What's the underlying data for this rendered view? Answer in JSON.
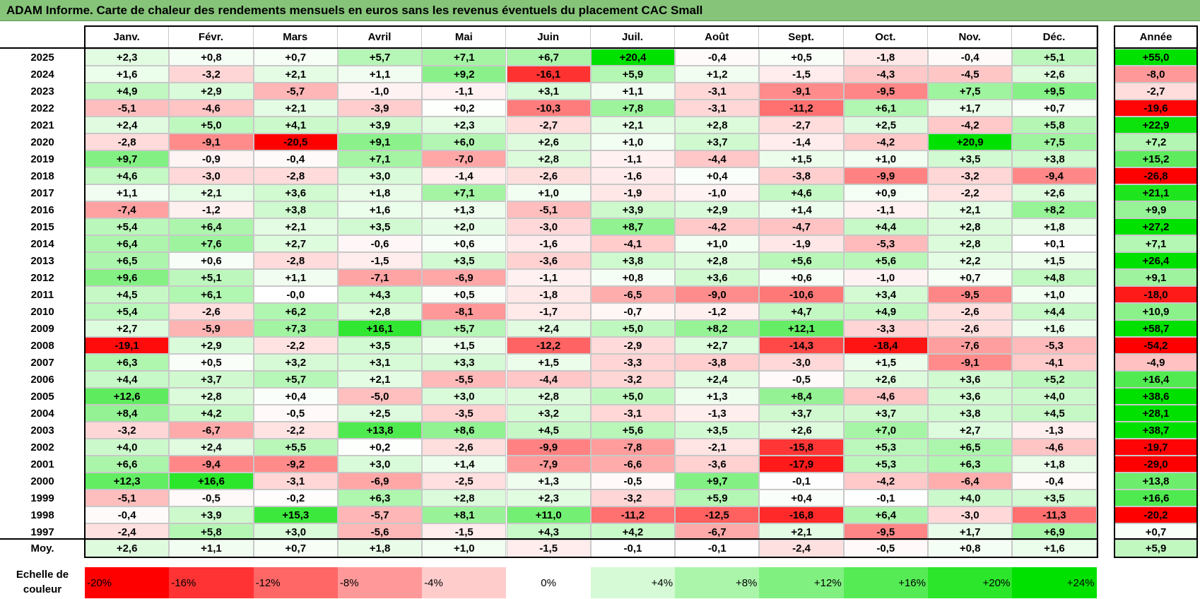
{
  "title": "ADAM Informe. Carte de chaleur des rendements mensuels en euros sans les revenus éventuels du placement CAC Small",
  "chart_data": {
    "type": "heatmap",
    "title": "ADAM Informe. Carte de chaleur des rendements mensuels en euros sans les revenus éventuels du placement CAC Small",
    "months": [
      "Janv.",
      "Févr.",
      "Mars",
      "Avril",
      "Mai",
      "Juin",
      "Juil.",
      "Août",
      "Sept.",
      "Oct.",
      "Nov.",
      "Déc."
    ],
    "annual_header": "Année",
    "average_label": "Moy.",
    "rows": [
      {
        "year": "2025",
        "values": [
          "+2,3",
          "+0,8",
          "+0,7",
          "+5,7",
          "+7,1",
          "+6,7",
          "+20,4",
          "-0,4",
          "+0,5",
          "-1,8",
          "-0,4",
          "+5,1"
        ],
        "annual": "+55,0"
      },
      {
        "year": "2024",
        "values": [
          "+1,6",
          "-3,2",
          "+2,1",
          "+1,1",
          "+9,2",
          "-16,1",
          "+5,9",
          "+1,2",
          "-1,5",
          "-4,3",
          "-4,5",
          "+2,6"
        ],
        "annual": "-8,0"
      },
      {
        "year": "2023",
        "values": [
          "+4,9",
          "+2,9",
          "-5,7",
          "-1,0",
          "-1,1",
          "+3,1",
          "+1,1",
          "-3,1",
          "-9,1",
          "-9,5",
          "+7,5",
          "+9,5"
        ],
        "annual": "-2,7"
      },
      {
        "year": "2022",
        "values": [
          "-5,1",
          "-4,6",
          "+2,1",
          "-3,9",
          "+0,2",
          "-10,3",
          "+7,8",
          "-3,1",
          "-11,2",
          "+6,1",
          "+1,7",
          "+0,7"
        ],
        "annual": "-19,6"
      },
      {
        "year": "2021",
        "values": [
          "+2,4",
          "+5,0",
          "+4,1",
          "+3,9",
          "+2,3",
          "-2,7",
          "+2,1",
          "+2,8",
          "-2,7",
          "+2,5",
          "-4,2",
          "+5,8"
        ],
        "annual": "+22,9"
      },
      {
        "year": "2020",
        "values": [
          "-2,8",
          "-9,1",
          "-20,5",
          "+9,1",
          "+6,0",
          "+2,6",
          "+1,0",
          "+3,7",
          "-1,4",
          "-4,2",
          "+20,9",
          "+7,5"
        ],
        "annual": "+7,2"
      },
      {
        "year": "2019",
        "values": [
          "+9,7",
          "-0,9",
          "-0,4",
          "+7,1",
          "-7,0",
          "+2,8",
          "-1,1",
          "-4,4",
          "+1,5",
          "+1,0",
          "+3,5",
          "+3,8"
        ],
        "annual": "+15,2"
      },
      {
        "year": "2018",
        "values": [
          "+4,6",
          "-3,0",
          "-2,8",
          "+3,0",
          "-1,4",
          "-2,6",
          "-1,6",
          "+0,4",
          "-3,8",
          "-9,9",
          "-3,2",
          "-9,4"
        ],
        "annual": "-26,8"
      },
      {
        "year": "2017",
        "values": [
          "+1,1",
          "+2,1",
          "+3,6",
          "+1,8",
          "+7,1",
          "+1,0",
          "-1,9",
          "-1,0",
          "+4,6",
          "+0,9",
          "-2,2",
          "+2,6"
        ],
        "annual": "+21,1"
      },
      {
        "year": "2016",
        "values": [
          "-7,4",
          "-1,2",
          "+3,8",
          "+1,6",
          "+1,3",
          "-5,1",
          "+3,9",
          "+2,9",
          "+1,4",
          "-1,1",
          "+2,1",
          "+8,2"
        ],
        "annual": "+9,9"
      },
      {
        "year": "2015",
        "values": [
          "+5,4",
          "+6,4",
          "+2,1",
          "+3,5",
          "+2,0",
          "-3,0",
          "+8,7",
          "-4,2",
          "-4,7",
          "+4,4",
          "+2,8",
          "+1,8"
        ],
        "annual": "+27,2"
      },
      {
        "year": "2014",
        "values": [
          "+6,4",
          "+7,6",
          "+2,7",
          "-0,6",
          "+0,6",
          "-1,6",
          "-4,1",
          "+1,0",
          "-1,9",
          "-5,3",
          "+2,8",
          "+0,1"
        ],
        "annual": "+7,1"
      },
      {
        "year": "2013",
        "values": [
          "+6,5",
          "+0,6",
          "-2,8",
          "-1,5",
          "+3,5",
          "-3,6",
          "+3,8",
          "+2,8",
          "+5,6",
          "+5,6",
          "+2,2",
          "+1,5"
        ],
        "annual": "+26,4"
      },
      {
        "year": "2012",
        "values": [
          "+9,6",
          "+5,1",
          "+1,1",
          "-7,1",
          "-6,9",
          "-1,1",
          "+0,8",
          "+3,6",
          "+0,6",
          "-1,0",
          "+0,7",
          "+4,8"
        ],
        "annual": "+9,1"
      },
      {
        "year": "2011",
        "values": [
          "+4,5",
          "+6,1",
          "-0,0",
          "+4,3",
          "+0,5",
          "-1,8",
          "-6,5",
          "-9,0",
          "-10,6",
          "+3,4",
          "-9,5",
          "+1,0"
        ],
        "annual": "-18,0"
      },
      {
        "year": "2010",
        "values": [
          "+5,4",
          "-2,6",
          "+6,2",
          "+2,8",
          "-8,1",
          "-1,7",
          "-0,7",
          "-1,2",
          "+4,7",
          "+4,9",
          "-2,6",
          "+4,4"
        ],
        "annual": "+10,9"
      },
      {
        "year": "2009",
        "values": [
          "+2,7",
          "-5,9",
          "+7,3",
          "+16,1",
          "+5,7",
          "+2,4",
          "+5,0",
          "+8,2",
          "+12,1",
          "-3,3",
          "-2,6",
          "+1,6"
        ],
        "annual": "+58,7"
      },
      {
        "year": "2008",
        "values": [
          "-19,1",
          "+2,9",
          "-2,2",
          "+3,5",
          "+1,5",
          "-12,2",
          "-2,9",
          "+2,7",
          "-14,3",
          "-18,4",
          "-7,6",
          "-5,3"
        ],
        "annual": "-54,2"
      },
      {
        "year": "2007",
        "values": [
          "+6,3",
          "+0,5",
          "+3,2",
          "+3,1",
          "+3,3",
          "+1,5",
          "-3,3",
          "-3,8",
          "-3,0",
          "+1,5",
          "-9,1",
          "-4,1"
        ],
        "annual": "-4,9"
      },
      {
        "year": "2006",
        "values": [
          "+4,4",
          "+3,7",
          "+5,7",
          "+2,1",
          "-5,5",
          "-4,4",
          "-3,2",
          "+2,4",
          "-0,5",
          "+2,6",
          "+3,6",
          "+5,2"
        ],
        "annual": "+16,4"
      },
      {
        "year": "2005",
        "values": [
          "+12,6",
          "+2,8",
          "+0,4",
          "-5,0",
          "+3,0",
          "+2,8",
          "+5,0",
          "+1,3",
          "+8,4",
          "-4,6",
          "+3,6",
          "+4,0"
        ],
        "annual": "+38,6"
      },
      {
        "year": "2004",
        "values": [
          "+8,4",
          "+4,2",
          "-0,5",
          "+2,5",
          "-3,5",
          "+3,2",
          "-3,1",
          "-1,3",
          "+3,7",
          "+3,7",
          "+3,8",
          "+4,5"
        ],
        "annual": "+28,1"
      },
      {
        "year": "2003",
        "values": [
          "-3,2",
          "-6,7",
          "-2,2",
          "+13,8",
          "+8,6",
          "+4,5",
          "+5,6",
          "+3,5",
          "+2,6",
          "+7,0",
          "+2,7",
          "-1,3"
        ],
        "annual": "+38,7"
      },
      {
        "year": "2002",
        "values": [
          "+4,0",
          "+2,4",
          "+5,5",
          "+0,2",
          "-2,6",
          "-9,9",
          "-7,8",
          "-2,1",
          "-15,8",
          "+5,3",
          "+6,5",
          "-4,6"
        ],
        "annual": "-19,7"
      },
      {
        "year": "2001",
        "values": [
          "+6,6",
          "-9,4",
          "-9,2",
          "+3,0",
          "+1,4",
          "-7,9",
          "-6,6",
          "-3,6",
          "-17,9",
          "+5,3",
          "+6,3",
          "+1,8"
        ],
        "annual": "-29,0"
      },
      {
        "year": "2000",
        "values": [
          "+12,3",
          "+16,6",
          "-3,1",
          "-6,9",
          "-2,5",
          "+1,3",
          "-0,5",
          "+9,7",
          "-0,1",
          "-4,2",
          "-6,4",
          "-0,4"
        ],
        "annual": "+13,8"
      },
      {
        "year": "1999",
        "values": [
          "-5,1",
          "-0,5",
          "-0,2",
          "+6,3",
          "+2,8",
          "+2,3",
          "-3,2",
          "+5,9",
          "+0,4",
          "-0,1",
          "+4,0",
          "+3,5"
        ],
        "annual": "+16,6"
      },
      {
        "year": "1998",
        "values": [
          "-0,4",
          "+3,9",
          "+15,3",
          "-5,7",
          "+8,1",
          "+11,0",
          "-11,2",
          "-12,5",
          "-16,8",
          "+6,4",
          "-3,0",
          "-11,3"
        ],
        "annual": "-20,2"
      },
      {
        "year": "1997",
        "values": [
          "-2,4",
          "+5,8",
          "+3,0",
          "-5,6",
          "-1,5",
          "+4,3",
          "+4,2",
          "-6,7",
          "+2,1",
          "-9,5",
          "+1,7",
          "+6,9"
        ],
        "annual": "+0,7"
      }
    ],
    "average": {
      "values": [
        "+2,6",
        "+1,1",
        "+0,7",
        "+1,8",
        "+1,0",
        "-1,5",
        "-0,1",
        "-0,1",
        "-2,4",
        "-0,5",
        "+0,8",
        "+1,6"
      ],
      "annual": "+5,9"
    },
    "color_scale": {
      "label": "Echelle de\ncouleur",
      "stops": [
        "-20%",
        "-16%",
        "-12%",
        "-8%",
        "-4%",
        "0%",
        "+4%",
        "+8%",
        "+12%",
        "+16%",
        "+20%",
        "+24%"
      ],
      "negative_color": "#ff0000",
      "zero_color": "#ffffff",
      "positive_color": "#00e000"
    }
  }
}
